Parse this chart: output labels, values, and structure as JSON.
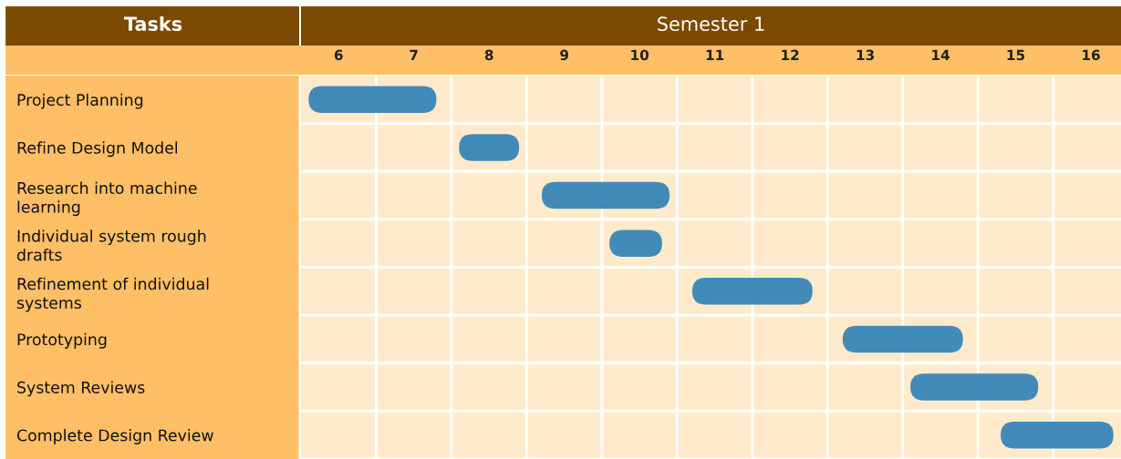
{
  "chart_data": {
    "type": "bar",
    "orientation": "horizontal",
    "title": "Semester 1",
    "ylabel": "Tasks",
    "categories": [
      "Project Planning",
      "Refine Design Model",
      "Research into machine\nlearning",
      "Individual system rough\ndrafts",
      "Refinement of individual\nsystems",
      "Prototyping",
      "System Reviews",
      "Complete Design Review"
    ],
    "base": [
      5.6,
      7.6,
      8.7,
      9.6,
      10.7,
      12.7,
      13.6,
      14.8
    ],
    "values": [
      1.7,
      0.8,
      1.7,
      0.7,
      1.6,
      1.6,
      1.7,
      1.5
    ],
    "color": "#428bb9",
    "xlim": [
      5.5,
      16.4
    ],
    "xticks": [
      6,
      7,
      8,
      9,
      10,
      11,
      12,
      13,
      14,
      15,
      16
    ],
    "grid": true
  }
}
